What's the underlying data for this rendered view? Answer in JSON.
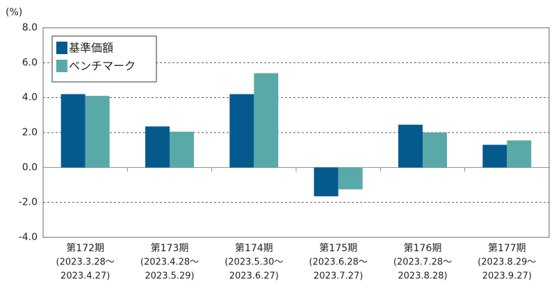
{
  "chart_data": {
    "type": "bar",
    "y_unit_label": "(%)",
    "categories": [
      "第172期",
      "第173期",
      "第174期",
      "第175期",
      "第176期",
      "第177期"
    ],
    "category_sublabels": [
      [
        "(2023.3.28〜",
        "2023.4.27)"
      ],
      [
        "(2023.4.28〜",
        "2023.5.29)"
      ],
      [
        "(2023.5.30〜",
        "2023.6.27)"
      ],
      [
        "(2023.6.28〜",
        "2023.7.27)"
      ],
      [
        "(2023.7.28〜",
        "2023.8.28)"
      ],
      [
        "(2023.8.29〜",
        "2023.9.27)"
      ]
    ],
    "series": [
      {
        "name": "基準価額",
        "color": "#045a8d",
        "values": [
          4.2,
          2.35,
          4.2,
          -1.65,
          2.45,
          1.3
        ]
      },
      {
        "name": "ベンチマーク",
        "color": "#5aa9a9",
        "values": [
          4.1,
          2.05,
          5.4,
          -1.25,
          2.0,
          1.55
        ]
      }
    ],
    "ylim": [
      -4,
      8
    ],
    "yticks": [
      {
        "value": -4,
        "label": "-4.0"
      },
      {
        "value": -2,
        "label": "-2.0"
      },
      {
        "value": 0,
        "label": "0.0"
      },
      {
        "value": 2,
        "label": "2.0"
      },
      {
        "value": 4,
        "label": "4.0"
      },
      {
        "value": 6,
        "label": "6.0"
      },
      {
        "value": 8,
        "label": "8.0"
      }
    ],
    "grid": "dashed",
    "legend": "upper left"
  }
}
